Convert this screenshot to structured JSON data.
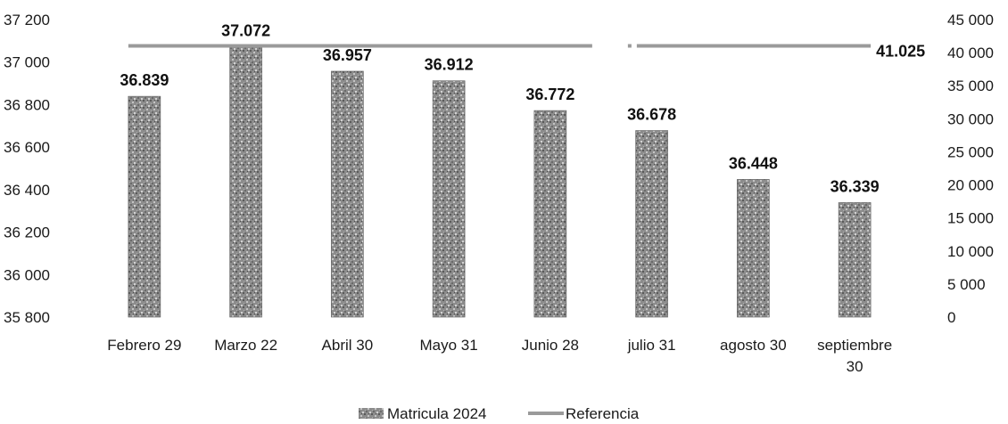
{
  "chart_data": {
    "type": "bar",
    "categories": [
      [
        "Febrero 29"
      ],
      [
        "Marzo 22"
      ],
      [
        "Abril 30"
      ],
      [
        "Mayo 31"
      ],
      [
        "Junio 28"
      ],
      [
        "julio 31"
      ],
      [
        "agosto 30"
      ],
      [
        "septiembre",
        "30"
      ]
    ],
    "series": [
      {
        "name": "Matricula 2024",
        "axis": "left",
        "values": [
          36839,
          37072,
          36957,
          36912,
          36772,
          36678,
          36448,
          36339
        ],
        "labels": [
          "36.839",
          "37.072",
          "36.957",
          "36.912",
          "36.772",
          "36.678",
          "36.448",
          "36.339"
        ]
      },
      {
        "name": "Referencia",
        "axis": "right",
        "type": "line",
        "value": 41025,
        "label": "41.025"
      }
    ],
    "left_axis": {
      "ylim": [
        35800,
        37200
      ],
      "ticks": [
        35800,
        36000,
        36200,
        36400,
        36600,
        36800,
        37000,
        37200
      ],
      "tick_labels": [
        "35 800",
        "36 000",
        "36 200",
        "36 400",
        "36 600",
        "36 800",
        "37 000",
        "37 200"
      ]
    },
    "right_axis": {
      "ylim": [
        0,
        45000
      ],
      "ticks": [
        0,
        5000,
        10000,
        15000,
        20000,
        25000,
        30000,
        35000,
        40000,
        45000
      ],
      "tick_labels": [
        "0",
        "5 000",
        "10 000",
        "15 000",
        "20 000",
        "25 000",
        "30 000",
        "35 000",
        "40 000",
        "45 000"
      ]
    },
    "title": "",
    "xlabel": "",
    "ylabel": "",
    "grid": false,
    "legend_position": "bottom-center",
    "colors": {
      "bar": "#8f8f8f",
      "bar_dark": "#5c5c5c",
      "line": "#9a9a9a",
      "text": "#1a1a1a"
    }
  }
}
